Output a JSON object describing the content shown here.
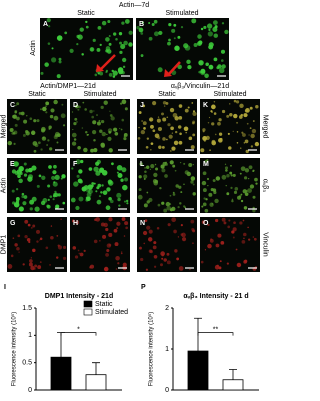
{
  "figure": {
    "top_title": "Actin—7d",
    "top_columns": [
      "Static",
      "Stimulated"
    ],
    "top_row": "Actin",
    "left_title": "Actin/DMP1—21d",
    "right_title": "αᵥβ₃/Vinculin—21d",
    "left_columns": [
      "Static",
      "Stimulated"
    ],
    "right_columns": [
      "Static",
      "Stimulated"
    ],
    "left_rows": [
      "Merged",
      "Actin",
      "DMP1"
    ],
    "right_rows": [
      "Merged",
      "αᵥβ₃",
      "Vinculin"
    ],
    "panels": [
      "A",
      "B",
      "C",
      "D",
      "E",
      "F",
      "G",
      "H",
      "J",
      "K",
      "L",
      "M",
      "N",
      "O"
    ]
  },
  "chart_data": [
    {
      "type": "bar",
      "letter": "I",
      "title": "DMP1 Intensity - 21d",
      "ylabel": "Fluorescence intensity (10⁵)",
      "series": [
        {
          "name": "Static",
          "color": "#000000",
          "values": [
            0.6
          ],
          "errors": [
            0.45
          ]
        },
        {
          "name": "Stimulated",
          "color": "#ffffff",
          "values": [
            0.28
          ],
          "errors": [
            0.22
          ]
        }
      ],
      "ylim": [
        0,
        1.5
      ],
      "yticks": [
        0,
        0.5,
        1,
        1.5
      ],
      "significance": "*",
      "legend": "upper-right"
    },
    {
      "type": "bar",
      "letter": "P",
      "title": "αᵥβ₃ Intensity - 21 d",
      "ylabel": "Fluorescence intensity (10⁵)",
      "series": [
        {
          "name": "Static",
          "color": "#000000",
          "values": [
            0.95
          ],
          "errors": [
            0.8
          ]
        },
        {
          "name": "Stimulated",
          "color": "#ffffff",
          "values": [
            0.25
          ],
          "errors": [
            0.25
          ]
        }
      ],
      "ylim": [
        0,
        2
      ],
      "yticks": [
        0,
        1,
        2
      ],
      "significance": "**"
    }
  ]
}
